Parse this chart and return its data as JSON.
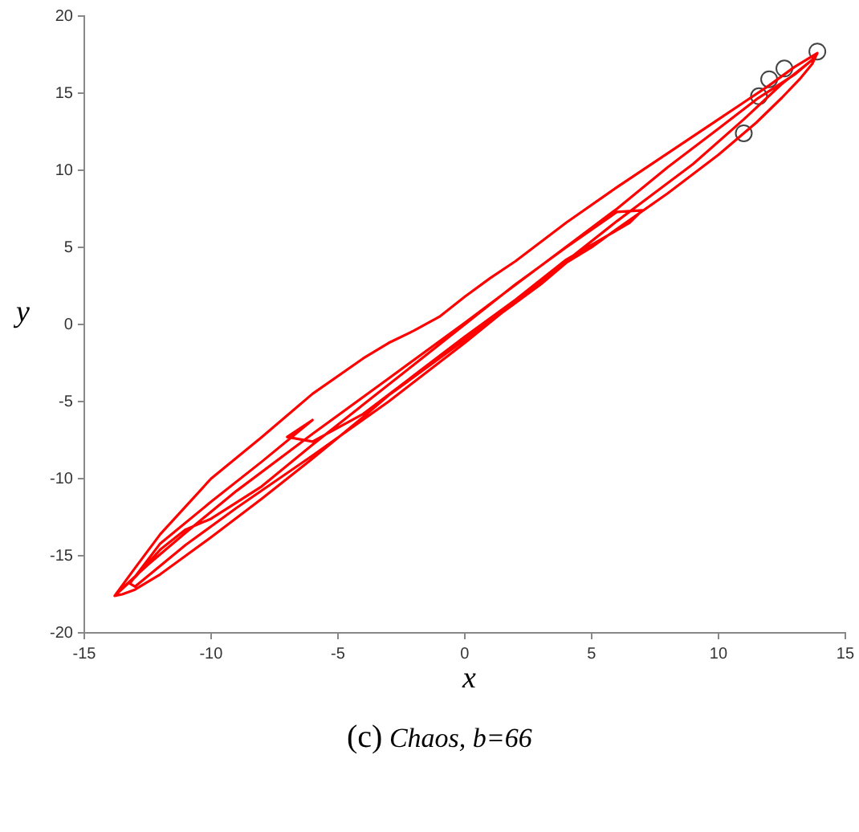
{
  "chart_data": {
    "type": "line",
    "xlabel": "x",
    "ylabel": "y",
    "annotations": [
      "(c)",
      "Chaos, b=66"
    ],
    "xlim": [
      -15,
      15
    ],
    "ylim": [
      -20,
      20
    ],
    "xticks": [
      -15,
      -10,
      -5,
      0,
      5,
      10,
      15
    ],
    "yticks": [
      -20,
      -15,
      -10,
      -5,
      0,
      5,
      10,
      15,
      20
    ],
    "grid": false,
    "legend": false,
    "series": [
      {
        "marker": "none",
        "color": "#ff0000",
        "x": [
          -13.8,
          -13,
          -12,
          -11,
          -10,
          -8,
          -6,
          -4,
          -3,
          -2,
          -1,
          0,
          1,
          2,
          4,
          6,
          8,
          10,
          11,
          12,
          13,
          13.6,
          13.9,
          13.7,
          13.2,
          12.5,
          11.5,
          10,
          8,
          6,
          5,
          4,
          3,
          2,
          1,
          0,
          -1,
          -2,
          -3,
          -4,
          -6,
          -8,
          -10,
          -11,
          -12,
          -13,
          -13.5,
          -13.8,
          -13,
          -12,
          -11,
          -10,
          -8,
          -6,
          -4,
          -2,
          0,
          2,
          4,
          6,
          7,
          6.5,
          4,
          2,
          0,
          -2,
          -4,
          -6,
          -7,
          -6,
          -8,
          -10,
          -12,
          -13.2,
          -13,
          -11,
          -9,
          -6,
          -3,
          0,
          3,
          6,
          9,
          11,
          12.5,
          13.5,
          13.8,
          13,
          11.5,
          10,
          8,
          6,
          3,
          0,
          -3,
          -6,
          -9,
          -11,
          -12.5,
          -13.5
        ],
        "values": [
          -17.6,
          -15.8,
          -13.6,
          -11.8,
          -10,
          -7.3,
          -4.5,
          -2.2,
          -1.2,
          -0.4,
          0.5,
          1.8,
          3,
          4.1,
          6.6,
          8.9,
          11.1,
          13.3,
          14.4,
          15.5,
          16.7,
          17.3,
          17.6,
          16.9,
          15.9,
          14.7,
          13.1,
          11,
          8.5,
          6.2,
          5,
          4,
          2.6,
          1.4,
          0.2,
          -1,
          -2.2,
          -3.4,
          -4.6,
          -6,
          -8.7,
          -11.3,
          -13.8,
          -15,
          -16.2,
          -17.2,
          -17.5,
          -17.6,
          -16.4,
          -14.6,
          -13.3,
          -12.6,
          -10.5,
          -7.8,
          -5.2,
          -2.6,
          0,
          2.6,
          5,
          7.3,
          7.4,
          6.6,
          4.2,
          1.6,
          -0.8,
          -3.3,
          -5.8,
          -7.6,
          -7.3,
          -6.2,
          -8.9,
          -11.5,
          -14.2,
          -16.8,
          -17,
          -14.3,
          -11.9,
          -8.5,
          -5,
          -1.2,
          2.8,
          6.7,
          10.4,
          13.3,
          15.6,
          16.9,
          17.3,
          16.2,
          14.6,
          12.7,
          10.2,
          7.5,
          3.8,
          0.1,
          -3.5,
          -7.1,
          -10.8,
          -13.5,
          -15.6,
          -17.1
        ]
      },
      {
        "type": "scatter",
        "marker": "circle",
        "color": "#444444",
        "x": [
          13.9,
          12.6,
          12,
          11.6,
          11
        ],
        "values": [
          17.7,
          16.6,
          15.9,
          14.8,
          12.4
        ]
      }
    ]
  }
}
